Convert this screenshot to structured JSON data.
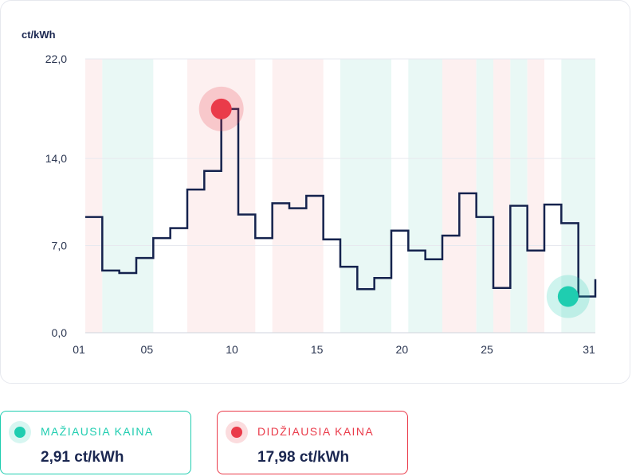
{
  "colors": {
    "line": "#14224d",
    "low_band": "#e9f8f5",
    "high_band": "#fdf0f0",
    "min_color": "#1fcdb0",
    "max_color": "#ea3b4a"
  },
  "chart_data": {
    "type": "line",
    "step": true,
    "ylabel": "ct/kWh",
    "ylim": [
      0,
      22
    ],
    "y_ticks": [
      "22,0",
      "14,0",
      "7,0",
      "0,0"
    ],
    "y_tick_values": [
      22,
      14,
      7,
      0
    ],
    "xlim": [
      1,
      31
    ],
    "x_ticks": [
      "01",
      "05",
      "10",
      "15",
      "20",
      "25",
      "31"
    ],
    "x_tick_values": [
      1,
      5,
      10,
      15,
      20,
      25,
      31
    ],
    "grid": true,
    "days": [
      1,
      2,
      3,
      4,
      5,
      6,
      7,
      8,
      9,
      10,
      11,
      12,
      13,
      14,
      15,
      16,
      17,
      18,
      19,
      20,
      21,
      22,
      23,
      24,
      25,
      26,
      27,
      28,
      29,
      30
    ],
    "values": [
      9.3,
      5.0,
      4.8,
      6.0,
      7.6,
      8.4,
      11.5,
      13.0,
      17.98,
      9.5,
      7.6,
      10.4,
      10.0,
      11.0,
      7.5,
      5.3,
      3.5,
      4.4,
      8.2,
      6.6,
      5.9,
      7.8,
      11.2,
      9.3,
      3.6,
      10.2,
      6.6,
      10.3,
      8.8,
      2.91
    ],
    "end_value": 4.3,
    "bands": [
      {
        "from": 1,
        "to": 2,
        "kind": "high"
      },
      {
        "from": 2,
        "to": 5,
        "kind": "low"
      },
      {
        "from": 7,
        "to": 11,
        "kind": "high"
      },
      {
        "from": 12,
        "to": 15,
        "kind": "high"
      },
      {
        "from": 16,
        "to": 19,
        "kind": "low"
      },
      {
        "from": 20,
        "to": 22,
        "kind": "low"
      },
      {
        "from": 22,
        "to": 24,
        "kind": "high"
      },
      {
        "from": 24,
        "to": 25,
        "kind": "low"
      },
      {
        "from": 25,
        "to": 26,
        "kind": "high"
      },
      {
        "from": 26,
        "to": 27,
        "kind": "low"
      },
      {
        "from": 27,
        "to": 28,
        "kind": "high"
      },
      {
        "from": 29,
        "to": 31,
        "kind": "low"
      }
    ],
    "max_point": {
      "day": 9,
      "value": 17.98
    },
    "min_point": {
      "day": 29.4,
      "value": 2.91
    }
  },
  "stats": {
    "min": {
      "label": "MAŽIAUSIA KAINA",
      "value": "2,91 ct/kWh"
    },
    "max": {
      "label": "DIDŽIAUSIA KAINA",
      "value": "17,98 ct/kWh"
    }
  }
}
